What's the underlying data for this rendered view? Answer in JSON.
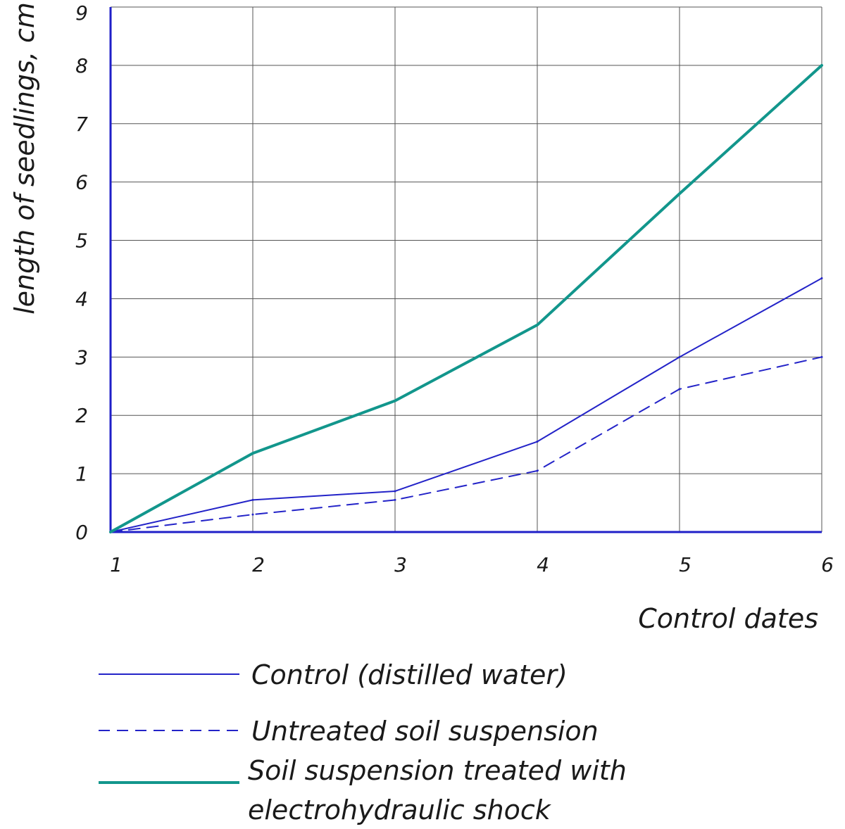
{
  "chart_data": {
    "type": "line",
    "xlabel": "Control dates",
    "ylabel": "length of seedlings, cm",
    "x": [
      1,
      2,
      3,
      4,
      5,
      6
    ],
    "x_tick_labels": [
      "1",
      "2",
      "3",
      "4",
      "5",
      "6"
    ],
    "y_tick_labels": [
      "0",
      "1",
      "2",
      "3",
      "4",
      "5",
      "6",
      "7",
      "8",
      "9"
    ],
    "xlim": [
      1,
      6
    ],
    "ylim": [
      0,
      9
    ],
    "grid": true,
    "legend_position": "bottom-left",
    "series": [
      {
        "name": "Control (distilled water)",
        "values": [
          0,
          0.55,
          0.7,
          1.55,
          3.0,
          4.35
        ],
        "color": "#2323c8",
        "style": "solid"
      },
      {
        "name": "Untreated soil suspension",
        "values": [
          0,
          0.3,
          0.55,
          1.05,
          2.45,
          3.0
        ],
        "color": "#2323c8",
        "style": "dashed"
      },
      {
        "name": "Soil suspension treated with electrohydraulic shock",
        "name_lines": [
          "Soil suspension treated with",
          "electrohydraulic shock"
        ],
        "values": [
          0,
          1.35,
          2.25,
          3.55,
          5.8,
          8.0
        ],
        "color": "#12968c",
        "style": "thick"
      }
    ],
    "axis_color": "#1f1fc8",
    "grid_color": "#555555"
  }
}
